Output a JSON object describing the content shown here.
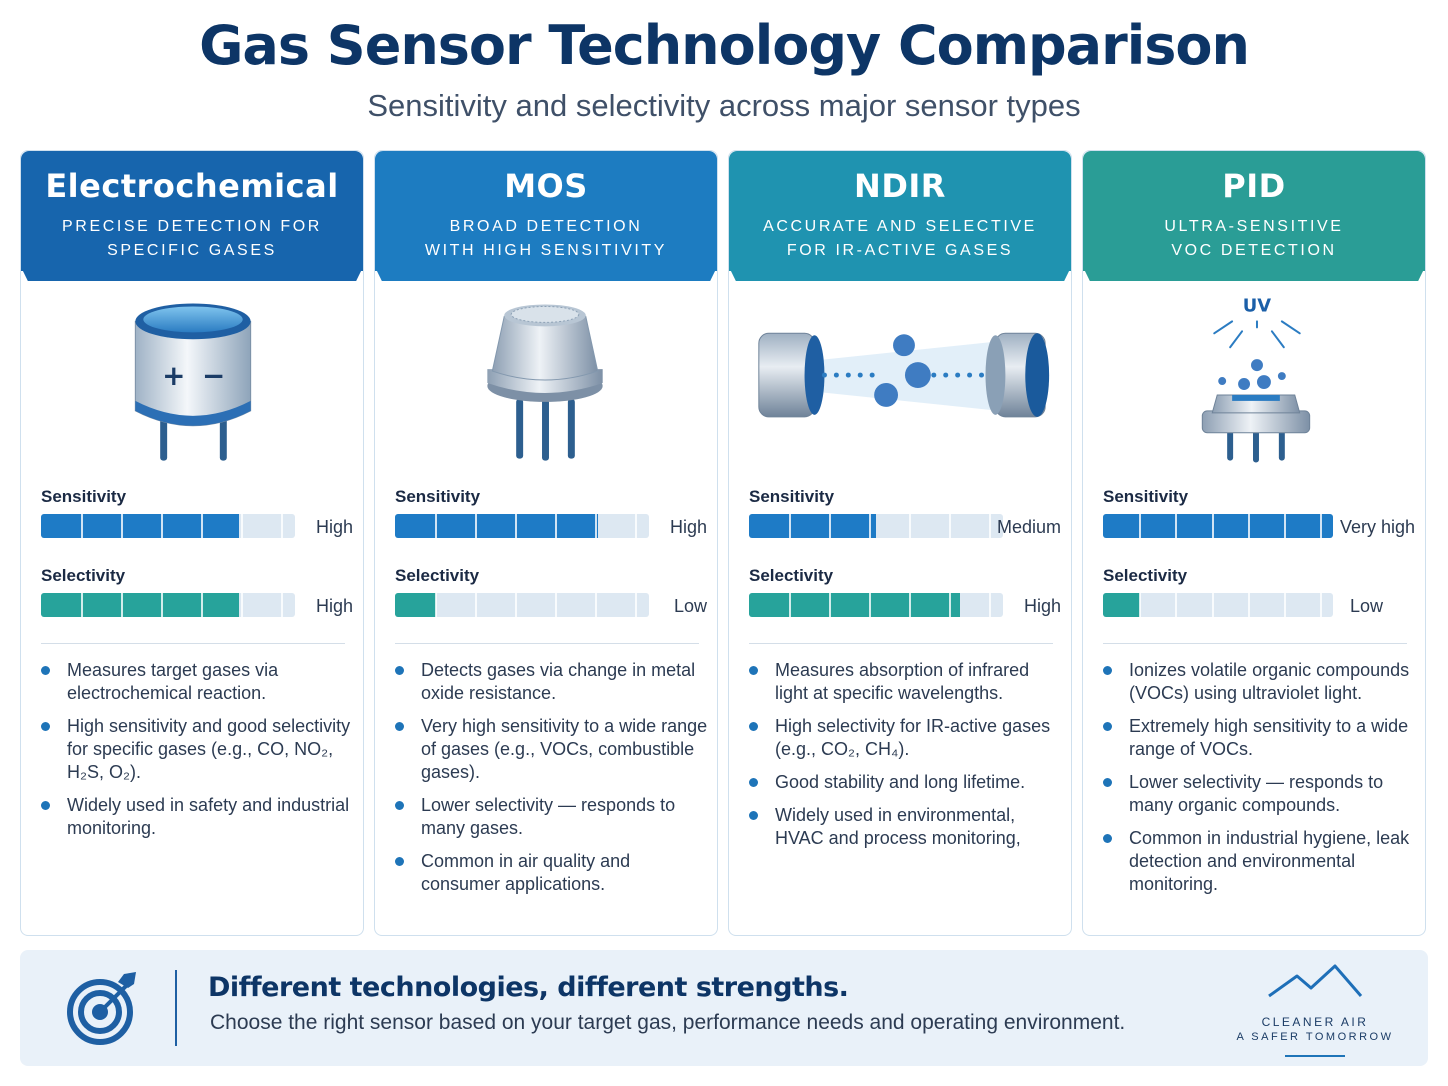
{
  "header": {
    "title": "Gas Sensor Technology Comparison",
    "subtitle": "Sensitivity and selectivity across major sensor types"
  },
  "labels": {
    "sensitivity": "Sensitivity",
    "selectivity": "Selectivity"
  },
  "cards": [
    {
      "name": "Electrochemical",
      "tagline_1": "Precise detection for",
      "tagline_2": "specific gases",
      "header_color": "#1765ad",
      "icon": "electrochemical-sensor-icon",
      "sensitivity": {
        "value": "High",
        "fraction": 0.78,
        "color": "#1e7bc6"
      },
      "selectivity": {
        "value": "High",
        "fraction": 0.78,
        "color": "#27a39b"
      },
      "bullets": [
        "Measures target gases via electrochemical reaction.",
        "High sensitivity and good selectivity for specific gases (e.g., CO, NO₂, H₂S, O₂).",
        "Widely used in safety and industrial monitoring."
      ]
    },
    {
      "name": "MOS",
      "tagline_1": "Broad detection",
      "tagline_2": "with high sensitivity",
      "header_color": "#1d7cc1",
      "icon": "mos-sensor-icon",
      "sensitivity": {
        "value": "High",
        "fraction": 0.8,
        "color": "#1e7bc6"
      },
      "selectivity": {
        "value": "Low",
        "fraction": 0.16,
        "color": "#27a39b"
      },
      "bullets": [
        "Detects gases via change in metal oxide resistance.",
        "Very high sensitivity to a wide range of gases (e.g., VOCs, combustible gases).",
        "Lower selectivity — responds to many gases.",
        "Common in air quality and consumer applications."
      ]
    },
    {
      "name": "NDIR",
      "tagline_1": "Accurate and selective",
      "tagline_2": "for IR-active gases",
      "header_color": "#1f93b0",
      "icon": "ndir-sensor-icon",
      "sensitivity": {
        "value": "Medium",
        "fraction": 0.5,
        "color": "#1e7bc6"
      },
      "selectivity": {
        "value": "High",
        "fraction": 0.83,
        "color": "#27a39b"
      },
      "bullets": [
        "Measures absorption of infrared light at specific wavelengths.",
        "High selectivity for IR-active gases (e.g., CO₂, CH₄).",
        "Good stability and long lifetime.",
        "Widely used in environmental, HVAC and process monitoring,"
      ]
    },
    {
      "name": "PID",
      "tagline_1": "Ultra-sensitive",
      "tagline_2": "VOC detection",
      "header_color": "#2a9d96",
      "icon": "pid-sensor-icon",
      "uv_label": "UV",
      "sensitivity": {
        "value": "Very high",
        "fraction": 1.0,
        "color": "#1e7bc6"
      },
      "selectivity": {
        "value": "Low",
        "fraction": 0.16,
        "color": "#27a39b"
      },
      "bullets": [
        "Ionizes volatile organic compounds (VOCs) using ultraviolet light.",
        "Extremely high sensitivity to a wide range of VOCs.",
        "Lower selectivity — responds to many organic compounds.",
        "Common in industrial hygiene, leak detection and environmental monitoring."
      ]
    }
  ],
  "footer": {
    "icon": "target-arrow-icon",
    "headline": "Different technologies, different strengths.",
    "text": "Choose the right sensor based on your target gas, performance needs and operating environment.",
    "brand_icon": "mountain-logo-icon",
    "brand_line_1": "CLEANER AIR",
    "brand_line_2": "A SAFER TOMORROW"
  }
}
